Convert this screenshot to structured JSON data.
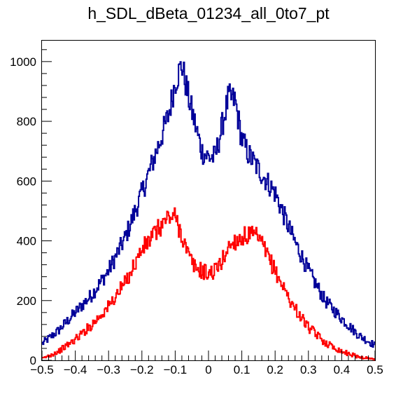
{
  "chart_data": {
    "type": "histogram",
    "title": "h_SDL_dBeta_01234_all_0to7_pt",
    "xlabel": "",
    "ylabel": "",
    "xlim": [
      -0.5,
      0.5
    ],
    "ylim": [
      0,
      1070
    ],
    "x_ticks": [
      -0.5,
      -0.4,
      -0.3,
      -0.2,
      -0.1,
      0,
      0.1,
      0.2,
      0.3,
      0.4,
      0.5
    ],
    "x_tick_labels": [
      "−0.5",
      "−0.4",
      "−0.3",
      "−0.2",
      "−0.1",
      "0",
      "0.1",
      "0.2",
      "0.3",
      "0.4",
      "0.5"
    ],
    "y_ticks": [
      0,
      200,
      400,
      600,
      800,
      1000
    ],
    "y_tick_labels": [
      "0",
      "200",
      "400",
      "600",
      "800",
      "1000"
    ],
    "grid": false,
    "legend": false,
    "series": [
      {
        "color": "#000099",
        "x": [
          -0.5,
          -0.45,
          -0.4,
          -0.35,
          -0.3,
          -0.25,
          -0.2,
          -0.15,
          -0.12,
          -0.1,
          -0.08,
          -0.06,
          -0.04,
          -0.02,
          0,
          0.02,
          0.04,
          0.06,
          0.08,
          0.1,
          0.12,
          0.15,
          0.2,
          0.25,
          0.3,
          0.35,
          0.4,
          0.45,
          0.5
        ],
        "y": [
          55,
          100,
          160,
          220,
          300,
          410,
          560,
          720,
          820,
          930,
          990,
          880,
          790,
          700,
          680,
          680,
          780,
          880,
          870,
          740,
          690,
          640,
          560,
          420,
          300,
          200,
          140,
          85,
          50
        ]
      },
      {
        "color": "#ff0000",
        "x": [
          -0.5,
          -0.45,
          -0.4,
          -0.35,
          -0.3,
          -0.25,
          -0.2,
          -0.15,
          -0.12,
          -0.1,
          -0.08,
          -0.06,
          -0.04,
          -0.02,
          0,
          0.02,
          0.04,
          0.06,
          0.08,
          0.1,
          0.12,
          0.15,
          0.2,
          0.25,
          0.3,
          0.35,
          0.4,
          0.45,
          0.5
        ],
        "y": [
          5,
          30,
          70,
          120,
          180,
          260,
          370,
          440,
          480,
          480,
          420,
          350,
          310,
          300,
          290,
          300,
          330,
          380,
          400,
          410,
          420,
          410,
          300,
          190,
          110,
          60,
          30,
          12,
          3
        ]
      }
    ]
  }
}
